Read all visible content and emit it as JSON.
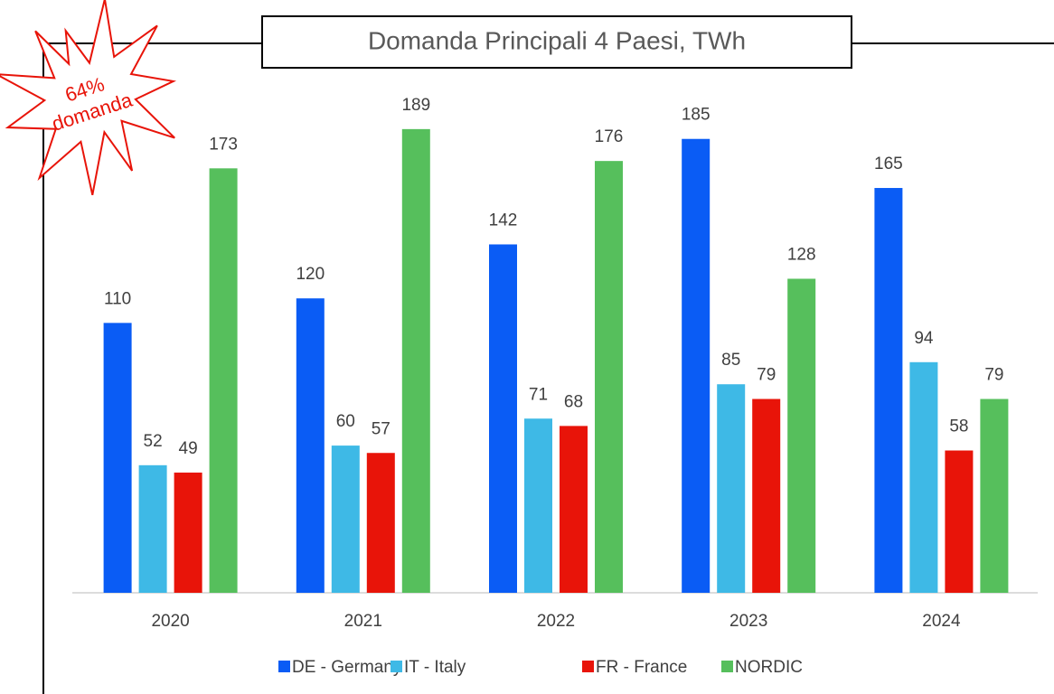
{
  "chart_data": {
    "type": "bar",
    "title": "Domanda Principali 4 Paesi, TWh",
    "annotation": [
      "64%",
      "domanda"
    ],
    "categories": [
      "2020",
      "2021",
      "2022",
      "2023",
      "2024"
    ],
    "series": [
      {
        "name": "DE - Germany",
        "color": "#0a5cf5",
        "values": [
          110,
          120,
          142,
          185,
          165
        ]
      },
      {
        "name": "IT - Italy",
        "color": "#3eb9e6",
        "values": [
          52,
          60,
          71,
          85,
          94
        ]
      },
      {
        "name": "FR - France",
        "color": "#e81409",
        "values": [
          49,
          57,
          68,
          79,
          58
        ]
      },
      {
        "name": "NORDIC",
        "color": "#56bf5c",
        "values": [
          173,
          189,
          176,
          128,
          79
        ]
      }
    ],
    "legend": "bottom"
  }
}
